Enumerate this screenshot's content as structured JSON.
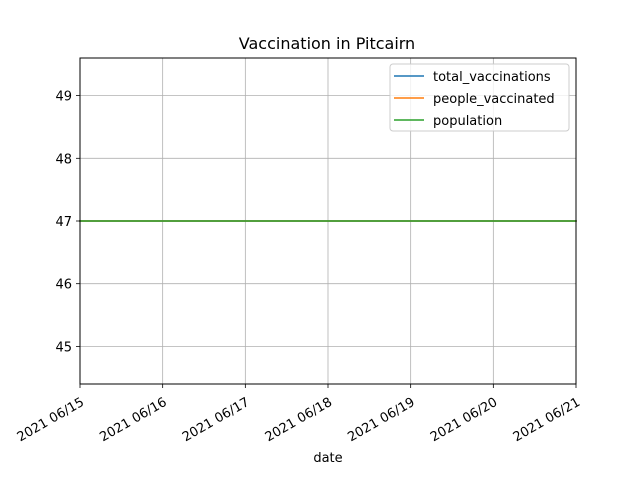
{
  "chart_data": {
    "type": "line",
    "title": "Vaccination in Pitcairn",
    "xlabel": "date",
    "ylabel": "",
    "x": [
      "2021-06-15",
      "2021-06-16",
      "2021-06-17",
      "2021-06-18",
      "2021-06-19",
      "2021-06-20",
      "2021-06-21"
    ],
    "x_tick_labels": [
      "2021 06/15",
      "2021 06/16",
      "2021 06/17",
      "2021 06/18",
      "2021 06/19",
      "2021 06/20",
      "2021 06/21"
    ],
    "ylim": [
      44.4,
      49.6
    ],
    "y_ticks": [
      45,
      46,
      47,
      48,
      49
    ],
    "y_tick_labels": [
      "45",
      "46",
      "47",
      "48",
      "49"
    ],
    "grid": true,
    "legend_position": "top-right",
    "series": [
      {
        "name": "total_vaccinations",
        "color": "#1f77b4",
        "values": [
          47,
          47,
          47,
          47,
          47,
          47,
          47
        ]
      },
      {
        "name": "people_vaccinated",
        "color": "#ff7f0e",
        "values": [
          47,
          47,
          47,
          47,
          47,
          47,
          47
        ]
      },
      {
        "name": "population",
        "color": "#2ca02c",
        "values": [
          47,
          47,
          47,
          47,
          47,
          47,
          47
        ]
      }
    ]
  }
}
